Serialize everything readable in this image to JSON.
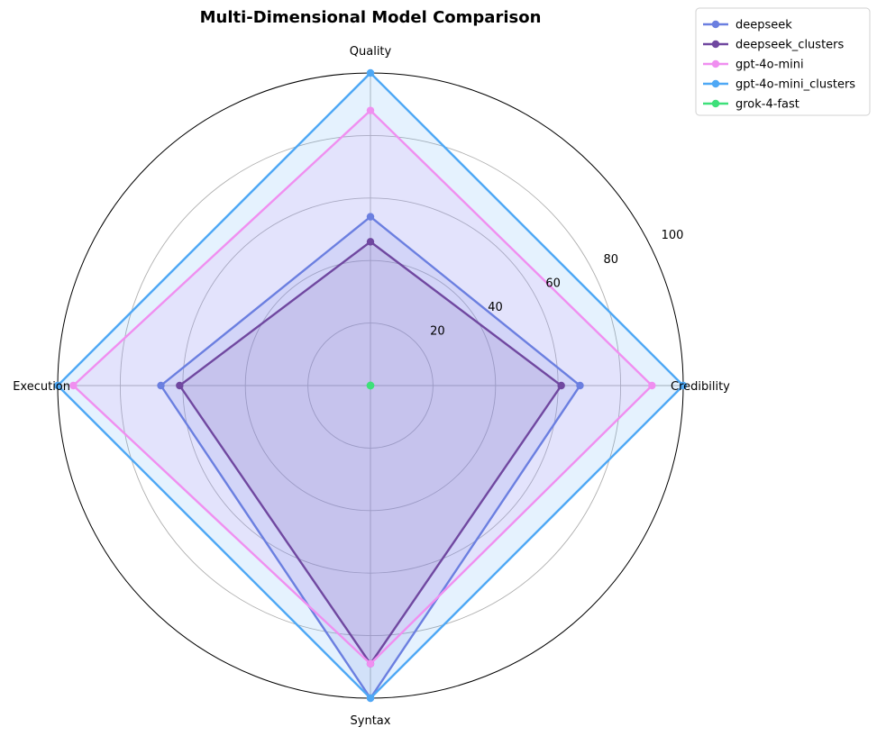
{
  "chart_data": {
    "type": "radar",
    "title": "Multi-Dimensional Model Comparison",
    "axes": [
      "Quality",
      "Credibility",
      "Syntax",
      "Execution"
    ],
    "rlim": [
      0,
      100
    ],
    "radial_ticks": [
      20,
      40,
      60,
      80,
      100
    ],
    "grid": true,
    "legend_position": "top-right",
    "series": [
      {
        "name": "deepseek",
        "color": "#6b7fe0",
        "values": [
          54,
          67,
          100,
          67
        ]
      },
      {
        "name": "deepseek_clusters",
        "color": "#7048a0",
        "values": [
          46,
          61,
          89,
          61
        ]
      },
      {
        "name": "gpt-4o-mini",
        "color": "#f08ff0",
        "values": [
          88,
          90,
          89,
          95
        ]
      },
      {
        "name": "gpt-4o-mini_clusters",
        "color": "#4ea8f5",
        "values": [
          100,
          100,
          100,
          100
        ]
      },
      {
        "name": "grok-4-fast",
        "color": "#3ee07a",
        "values": [
          0,
          0,
          0,
          0
        ]
      }
    ],
    "fill_colors": {
      "gpt-4o-mini_clusters": "#d6eafa",
      "gpt-4o-mini": "#dcd6fa",
      "deepseek": "#cfd0f6",
      "deepseek_clusters": "#c3c1ef"
    }
  }
}
